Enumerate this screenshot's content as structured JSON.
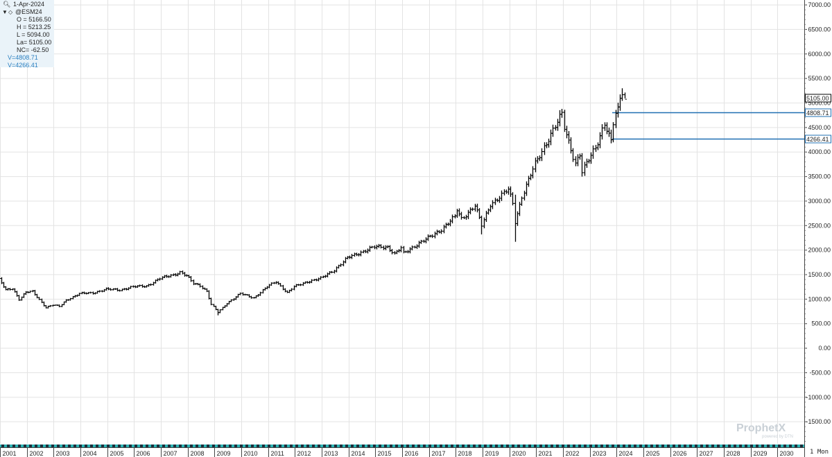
{
  "header": {
    "date": "1-Apr-2024",
    "symbol": "@ESM24",
    "open": "O = 5166.50",
    "high": "H = 5213.25",
    "low": "L = 5094.00",
    "last": "La= 5105.00",
    "net_change": "NC= -62.50",
    "hline1": "V=4808.71",
    "hline2": "V=4266.41"
  },
  "footer": {
    "period": "1 Mon",
    "watermark": "ProphetX",
    "watermark_sub": "powered by DTN"
  },
  "colors": {
    "bars": "#000000",
    "hline": "#1f6fb2",
    "grid": "#e3e3e3",
    "info_bg": "#eaf3f9",
    "last_price_box": "#ffffff"
  },
  "chart_data": {
    "type": "ohlc",
    "interval": "monthly",
    "y_ticks": [
      7000,
      6500,
      6000,
      5500,
      5000,
      4500,
      4000,
      3500,
      3000,
      2500,
      2000,
      1500,
      1000,
      500,
      0,
      -500,
      -1000,
      -1500
    ],
    "y_tick_labels": [
      "7000.00",
      "6500.00",
      "6000.00",
      "5500.00",
      "5000.00",
      "4500.00",
      "4000.00",
      "3500.00",
      "3000.00",
      "2500.00",
      "2000.00",
      "1500.00",
      "1000.00",
      "500.00",
      "0.00",
      "-500.00",
      "-1000.00",
      "-1500.00"
    ],
    "ylim": [
      -1950,
      7100
    ],
    "x_years": [
      "2001",
      "2002",
      "2003",
      "2004",
      "2005",
      "2006",
      "2007",
      "2008",
      "2009",
      "2010",
      "2011",
      "2012",
      "2013",
      "2014",
      "2015",
      "2016",
      "2017",
      "2018",
      "2019",
      "2020",
      "2021",
      "2022",
      "2023",
      "2024",
      "2025",
      "2026",
      "2027",
      "2028",
      "2029",
      "2030"
    ],
    "x_range_years": [
      2001,
      2031
    ],
    "last_price": 5105.0,
    "last_price_label": "5105.00",
    "horizontal_lines": [
      {
        "value": 4808.71,
        "label": "4808.71",
        "start": "2023-11"
      },
      {
        "value": 4266.41,
        "label": "4266.41",
        "start": "2023-11"
      }
    ],
    "anchors": [
      [
        "2000-12",
        1400
      ],
      [
        "2001-03",
        1180
      ],
      [
        "2001-06",
        1220
      ],
      [
        "2001-09",
        1000
      ],
      [
        "2001-12",
        1140
      ],
      [
        "2002-03",
        1150
      ],
      [
        "2002-06",
        990
      ],
      [
        "2002-09",
        830
      ],
      [
        "2002-12",
        880
      ],
      [
        "2003-03",
        850
      ],
      [
        "2003-06",
        980
      ],
      [
        "2003-12",
        1110
      ],
      [
        "2004-06",
        1130
      ],
      [
        "2004-12",
        1200
      ],
      [
        "2005-06",
        1190
      ],
      [
        "2005-12",
        1250
      ],
      [
        "2006-06",
        1270
      ],
      [
        "2006-12",
        1420
      ],
      [
        "2007-06",
        1500
      ],
      [
        "2007-09",
        1550
      ],
      [
        "2007-12",
        1470
      ],
      [
        "2008-03",
        1320
      ],
      [
        "2008-06",
        1280
      ],
      [
        "2008-09",
        1160
      ],
      [
        "2008-11",
        890
      ],
      [
        "2009-02",
        730
      ],
      [
        "2009-06",
        920
      ],
      [
        "2009-12",
        1110
      ],
      [
        "2010-06",
        1030
      ],
      [
        "2010-12",
        1250
      ],
      [
        "2011-04",
        1360
      ],
      [
        "2011-09",
        1130
      ],
      [
        "2011-12",
        1250
      ],
      [
        "2012-06",
        1360
      ],
      [
        "2012-12",
        1420
      ],
      [
        "2013-06",
        1600
      ],
      [
        "2013-12",
        1840
      ],
      [
        "2014-06",
        1960
      ],
      [
        "2014-12",
        2060
      ],
      [
        "2015-06",
        2070
      ],
      [
        "2015-09",
        1920
      ],
      [
        "2015-12",
        2040
      ],
      [
        "2016-01",
        1930
      ],
      [
        "2016-06",
        2090
      ],
      [
        "2016-12",
        2240
      ],
      [
        "2017-06",
        2430
      ],
      [
        "2017-12",
        2670
      ],
      [
        "2018-01",
        2820
      ],
      [
        "2018-03",
        2640
      ],
      [
        "2018-09",
        2910
      ],
      [
        "2018-12",
        2500
      ],
      [
        "2019-04",
        2940
      ],
      [
        "2019-12",
        3230
      ],
      [
        "2020-02",
        2950
      ],
      [
        "2020-03",
        2580
      ],
      [
        "2020-06",
        3100
      ],
      [
        "2020-12",
        3750
      ],
      [
        "2021-06",
        4290
      ],
      [
        "2021-12",
        4760
      ],
      [
        "2022-01",
        4500
      ],
      [
        "2022-06",
        3780
      ],
      [
        "2022-08",
        3950
      ],
      [
        "2022-09",
        3590
      ],
      [
        "2022-12",
        3840
      ],
      [
        "2023-03",
        4110
      ],
      [
        "2023-07",
        4590
      ],
      [
        "2023-10",
        4190
      ],
      [
        "2023-11",
        4570
      ],
      [
        "2023-12",
        4780
      ],
      [
        "2024-01",
        4850
      ],
      [
        "2024-02",
        5100
      ],
      [
        "2024-03",
        5260
      ],
      [
        "2024-04",
        5105
      ]
    ]
  }
}
